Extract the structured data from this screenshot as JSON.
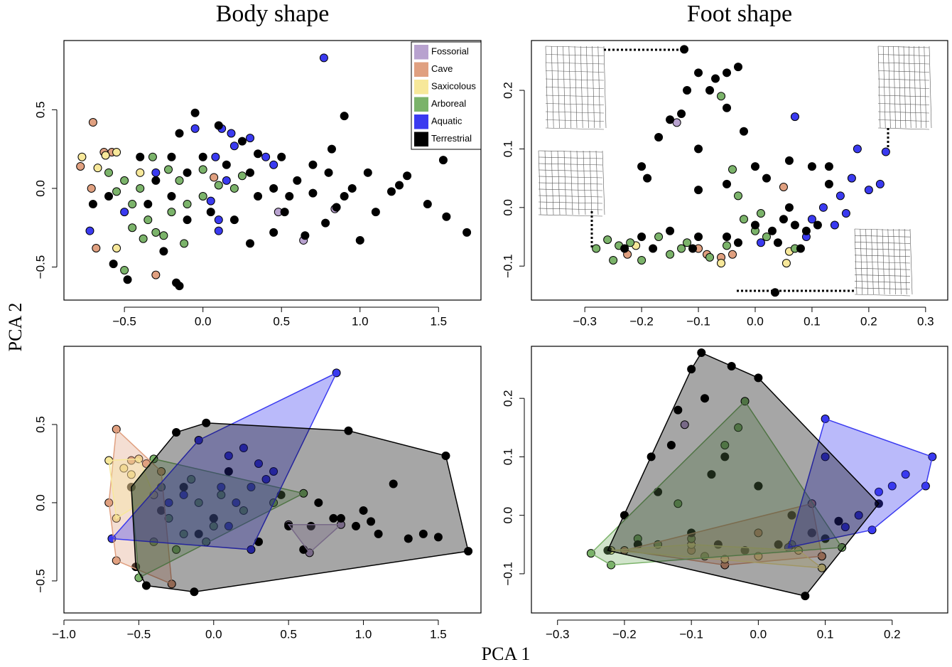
{
  "xlabel": "PCA 1",
  "ylabel": "PCA 2",
  "chart_data": [
    {
      "type": "scatter",
      "title": "Body shape",
      "legend": "top-right",
      "hull": false,
      "xlim": [
        -0.885,
        1.77
      ],
      "ylim": [
        -0.71,
        0.94
      ],
      "xticks": [
        {
          "value": -0.5,
          "label": "−0.5"
        },
        {
          "value": 0,
          "label": "0.0"
        },
        0.5,
        {
          "value": 1.0,
          "label": "1.0"
        },
        1.5
      ],
      "yticks": [
        {
          "value": -0.5,
          "label": "−0.5"
        },
        {
          "value": 0,
          "label": "0.0"
        },
        0.5
      ],
      "series": [
        {
          "name": "Fossorial",
          "color": "#b8a2cf",
          "x": [
            0.48,
            0.84,
            0.64
          ],
          "values": [
            -0.15,
            -0.13,
            -0.33
          ]
        },
        {
          "name": "Cave",
          "color": "#e0a080",
          "x": [
            -0.7,
            -0.78,
            -0.71,
            -0.68,
            -0.58,
            -0.63,
            -0.3,
            0.07
          ],
          "values": [
            0.42,
            0.14,
            0.0,
            -0.38,
            0.23,
            0.23,
            -0.55,
            0.07
          ]
        },
        {
          "name": "Saxicolous",
          "color": "#f7e89a",
          "x": [
            -0.77,
            -0.67,
            -0.62,
            -0.55,
            -0.55,
            -0.4
          ],
          "values": [
            0.2,
            0.13,
            0.21,
            0.23,
            -0.38,
            0.1
          ]
        },
        {
          "name": "Arboreal",
          "color": "#7bb36a",
          "x": [
            -0.6,
            -0.5,
            -0.45,
            -0.4,
            -0.35,
            -0.3,
            -0.25,
            -0.2,
            -0.15,
            -0.1,
            0.0,
            0.1,
            0.2,
            -0.5,
            -0.45,
            -0.32,
            -0.22,
            -0.12,
            0.0,
            0.25,
            -0.55,
            -0.38
          ],
          "values": [
            0.1,
            0.05,
            -0.1,
            0.0,
            -0.2,
            -0.28,
            -0.3,
            -0.15,
            0.05,
            -0.1,
            -0.05,
            0.02,
            0.0,
            -0.52,
            -0.25,
            0.2,
            0.12,
            -0.35,
            0.12,
            0.08,
            -0.02,
            -0.32
          ]
        },
        {
          "name": "Aquatic",
          "color": "#3a3af0",
          "x": [
            0.77,
            -0.72,
            -0.05,
            0.08,
            0.18,
            0.3,
            0.4,
            0.1,
            0.1,
            -0.5,
            -0.3,
            0.15,
            0.05,
            0.45,
            0.12,
            0.2
          ],
          "values": [
            0.83,
            -0.27,
            0.38,
            0.2,
            0.35,
            0.32,
            0.2,
            -0.2,
            -0.27,
            -0.15,
            0.1,
            0.05,
            -0.08,
            0.15,
            0.38,
            0.27
          ]
        },
        {
          "name": "Terrestrial",
          "color": "#000000",
          "x": [
            -0.05,
            -0.15,
            0.1,
            0.25,
            0.35,
            0.5,
            0.7,
            0.9,
            0.82,
            0.8,
            1.05,
            1.3,
            1.53,
            1.2,
            1.43,
            1.55,
            1.68,
            1.1,
            1.0,
            0.9,
            0.85,
            0.78,
            0.65,
            0.52,
            0.45,
            0.3,
            0.2,
            0.35,
            0.45,
            0.55,
            0.3,
            0.15,
            0.0,
            -0.1,
            -0.2,
            -0.3,
            -0.4,
            -0.2,
            -0.1,
            0.05,
            -0.25,
            -0.17,
            -0.15,
            -0.48,
            -0.57,
            -0.7,
            -0.35,
            -0.6,
            0.6,
            0.7,
            0.95,
            1.25
          ],
          "values": [
            0.48,
            0.35,
            0.4,
            0.3,
            0.22,
            0.2,
            0.15,
            0.46,
            0.25,
            0.1,
            0.1,
            0.08,
            0.18,
            -0.02,
            -0.1,
            -0.18,
            -0.28,
            -0.15,
            -0.33,
            -0.05,
            -0.12,
            -0.22,
            -0.3,
            -0.15,
            -0.28,
            -0.35,
            -0.2,
            -0.05,
            0.0,
            -0.05,
            0.1,
            0.15,
            0.2,
            0.1,
            0.2,
            0.05,
            0.2,
            -0.05,
            -0.2,
            -0.15,
            -0.4,
            -0.6,
            -0.62,
            -0.58,
            -0.48,
            -0.1,
            -0.1,
            -0.05,
            0.05,
            -0.03,
            0.0,
            0.02
          ]
        }
      ]
    },
    {
      "type": "scatter",
      "title": "Foot shape",
      "hull": false,
      "xlim": [
        -0.394,
        0.339
      ],
      "ylim": [
        -0.158,
        0.285
      ],
      "xticks": [
        {
          "value": -0.3,
          "label": "−0.3"
        },
        {
          "value": -0.2,
          "label": "−0.2"
        },
        {
          "value": -0.1,
          "label": "−0.1"
        },
        {
          "value": 0,
          "label": "0.0"
        },
        0.1,
        0.2,
        0.3
      ],
      "yticks": [
        {
          "value": -0.1,
          "label": "−0.1"
        },
        {
          "value": 0,
          "label": "0.0"
        },
        0.1,
        0.2
      ],
      "series": [
        {
          "name": "Fossorial",
          "color": "#b8a2cf",
          "x": [
            -0.138
          ],
          "values": [
            0.145
          ]
        },
        {
          "name": "Cave",
          "color": "#e0a080",
          "x": [
            -0.225,
            -0.085,
            -0.06,
            -0.04,
            0.05,
            -0.1
          ],
          "values": [
            -0.08,
            -0.08,
            -0.085,
            -0.08,
            0.035,
            -0.07
          ]
        },
        {
          "name": "Saxicolous",
          "color": "#f7e89a",
          "x": [
            -0.21,
            -0.06,
            0.055,
            0.06
          ],
          "values": [
            -0.065,
            -0.095,
            -0.095,
            -0.075
          ]
        },
        {
          "name": "Arboreal",
          "color": "#7bb36a",
          "x": [
            -0.28,
            -0.26,
            -0.24,
            -0.22,
            -0.2,
            -0.15,
            -0.17,
            -0.12,
            -0.08,
            -0.05,
            -0.02,
            0.0,
            -0.03,
            -0.04,
            -0.06,
            0.02,
            0.07,
            -0.25,
            -0.13,
            0.01
          ],
          "values": [
            -0.07,
            -0.055,
            -0.065,
            -0.06,
            -0.09,
            -0.08,
            -0.05,
            -0.06,
            -0.085,
            -0.065,
            -0.02,
            -0.04,
            0.02,
            0.065,
            0.19,
            -0.05,
            -0.07,
            -0.09,
            -0.07,
            -0.01
          ]
        },
        {
          "name": "Aquatic",
          "color": "#3a3af0",
          "x": [
            0.07,
            0.23,
            0.18,
            0.22,
            0.2,
            0.17,
            0.15,
            0.16,
            0.14,
            0.12,
            0.1,
            0.01,
            0.09
          ],
          "values": [
            0.155,
            0.095,
            0.1,
            0.04,
            0.03,
            0.05,
            0.02,
            -0.01,
            -0.03,
            0.0,
            -0.02,
            -0.06,
            -0.05
          ]
        },
        {
          "name": "Terrestrial",
          "color": "#000000",
          "x": [
            0.035,
            -0.125,
            -0.12,
            -0.1,
            -0.08,
            -0.07,
            -0.05,
            -0.03,
            -0.13,
            -0.15,
            -0.17,
            -0.2,
            -0.19,
            -0.1,
            -0.05,
            -0.02,
            0.0,
            0.02,
            0.06,
            0.1,
            0.13,
            0.13,
            -0.1,
            -0.05,
            -0.15,
            -0.1,
            -0.05,
            0.0,
            0.03,
            0.05,
            0.07,
            0.09,
            0.11,
            0.04,
            -0.2,
            -0.23,
            -0.18,
            -0.11,
            0.08,
            0.06,
            -0.03
          ],
          "values": [
            -0.145,
            0.27,
            0.2,
            0.23,
            0.2,
            0.22,
            0.23,
            0.24,
            0.16,
            0.15,
            0.12,
            0.07,
            0.05,
            0.1,
            0.17,
            0.13,
            0.07,
            0.05,
            0.08,
            0.07,
            0.07,
            0.04,
            0.03,
            0.04,
            -0.04,
            -0.05,
            -0.05,
            -0.03,
            -0.04,
            -0.02,
            -0.03,
            -0.04,
            -0.03,
            -0.06,
            -0.05,
            -0.07,
            -0.07,
            -0.07,
            -0.07,
            0.0,
            -0.06
          ]
        }
      ]
    },
    {
      "type": "scatter",
      "hull": true,
      "xlim": [
        -1.0,
        1.785
      ],
      "ylim": [
        -0.705,
        1.0
      ],
      "xticks": [
        {
          "value": -1.0,
          "label": "−1.0"
        },
        {
          "value": -0.5,
          "label": "−0.5"
        },
        {
          "value": 0,
          "label": "0.0"
        },
        0.5,
        {
          "value": 1.0,
          "label": "1.0"
        },
        1.5
      ],
      "yticks": [
        {
          "value": -0.5,
          "label": "−0.5"
        },
        {
          "value": 0,
          "label": "0.0"
        },
        0.5
      ],
      "series": [
        {
          "name": "Fossorial",
          "color": "#b8a2cf",
          "x": [
            0.5,
            0.85,
            0.64
          ],
          "values": [
            -0.14,
            -0.14,
            -0.32
          ]
        },
        {
          "name": "Cave",
          "color": "#e0a080",
          "x": [
            -0.65,
            -0.7,
            -0.65,
            -0.28,
            -0.55,
            -0.45,
            -0.35
          ],
          "values": [
            0.47,
            0.0,
            -0.37,
            -0.52,
            0.27,
            0.25,
            0.2
          ]
        },
        {
          "name": "Saxicolous",
          "color": "#f7e89a",
          "x": [
            -0.7,
            -0.5,
            -0.4,
            -0.65,
            -0.6,
            -0.55
          ],
          "values": [
            0.27,
            0.28,
            0.05,
            -0.1,
            0.22,
            0.18
          ]
        },
        {
          "name": "Arboreal",
          "color": "#7bb36a",
          "x": [
            -0.5,
            0.6,
            -0.4,
            -0.55,
            0.05,
            -0.3,
            -0.2,
            -0.1,
            0.2,
            -0.4,
            -0.25,
            0.0,
            -0.15,
            0.4,
            -0.35,
            -0.05
          ],
          "values": [
            -0.48,
            0.06,
            0.28,
            0.1,
            0.05,
            -0.1,
            -0.2,
            0.0,
            -0.05,
            -0.25,
            -0.3,
            -0.15,
            0.15,
            0.0,
            0.1,
            -0.25
          ]
        },
        {
          "name": "Aquatic",
          "color": "#3a3af0",
          "x": [
            0.82,
            -0.68,
            0.25,
            0.05,
            -0.1,
            0.1,
            0.2,
            0.3,
            0.4,
            -0.3,
            0.0,
            0.15,
            0.25,
            -0.2,
            0.35,
            0.1
          ],
          "values": [
            0.83,
            -0.23,
            -0.3,
            0.1,
            0.4,
            0.3,
            0.35,
            0.25,
            0.2,
            0.0,
            -0.1,
            0.0,
            0.1,
            0.05,
            0.15,
            -0.15
          ]
        },
        {
          "name": "Terrestrial",
          "color": "#000000",
          "x": [
            -0.05,
            0.9,
            1.55,
            1.7,
            -0.13,
            -0.45,
            -0.52,
            -0.55,
            -0.25,
            0.5,
            0.7,
            1.0,
            1.2,
            1.4,
            1.5,
            0.6,
            0.8,
            0.95,
            1.05,
            0.3,
            0.1,
            -0.2,
            -0.35,
            0.45,
            0.65,
            0.85,
            1.1,
            1.3,
            0.0,
            -0.1
          ],
          "values": [
            0.51,
            0.46,
            0.3,
            -0.31,
            -0.57,
            -0.53,
            -0.41,
            0.1,
            0.45,
            -0.15,
            0.0,
            -0.05,
            0.12,
            -0.2,
            -0.22,
            -0.3,
            -0.1,
            -0.15,
            -0.12,
            -0.25,
            0.2,
            0.1,
            -0.05,
            0.05,
            -0.15,
            -0.1,
            -0.2,
            -0.23,
            -0.1,
            -0.2
          ]
        }
      ]
    },
    {
      "type": "scatter",
      "hull": true,
      "xlim": [
        -0.339,
        0.283
      ],
      "ylim": [
        -0.167,
        0.289
      ],
      "xticks": [
        {
          "value": -0.3,
          "label": "−0.3"
        },
        {
          "value": -0.2,
          "label": "−0.2"
        },
        {
          "value": -0.1,
          "label": "−0.1"
        },
        {
          "value": 0,
          "label": "0.0"
        },
        0.1,
        0.2
      ],
      "yticks": [
        {
          "value": -0.1,
          "label": "−0.1"
        },
        {
          "value": 0,
          "label": "0.0"
        },
        0.1,
        0.2
      ],
      "series": [
        {
          "name": "Fossorial",
          "color": "#b8a2cf",
          "x": [
            -0.11
          ],
          "values": [
            0.155
          ]
        },
        {
          "name": "Cave",
          "color": "#e0a080",
          "x": [
            0.08,
            -0.2,
            -0.05,
            0.095,
            0.0,
            -0.1,
            0.05
          ],
          "values": [
            0.02,
            -0.06,
            -0.085,
            -0.07,
            -0.03,
            -0.06,
            -0.05
          ]
        },
        {
          "name": "Saxicolous",
          "color": "#f7e89a",
          "x": [
            -0.22,
            0.095,
            0.06,
            -0.1,
            -0.05,
            0.0
          ],
          "values": [
            -0.06,
            -0.09,
            -0.06,
            -0.05,
            -0.075,
            -0.07
          ]
        },
        {
          "name": "Arboreal",
          "color": "#7bb36a",
          "x": [
            -0.02,
            -0.25,
            -0.22,
            0.125,
            0.08,
            -0.05,
            -0.1,
            -0.15,
            0.0,
            -0.03,
            -0.08,
            0.05,
            -0.18,
            -0.12,
            0.1
          ],
          "values": [
            0.195,
            -0.065,
            -0.085,
            -0.055,
            -0.03,
            0.12,
            -0.04,
            -0.05,
            0.05,
            0.15,
            -0.07,
            -0.05,
            -0.04,
            0.02,
            -0.04
          ]
        },
        {
          "name": "Aquatic",
          "color": "#3a3af0",
          "x": [
            0.1,
            0.26,
            0.25,
            0.17,
            0.045,
            0.1,
            0.2,
            0.18,
            0.15,
            0.12,
            0.08,
            0.13,
            0.22
          ],
          "values": [
            0.165,
            0.1,
            0.05,
            -0.025,
            -0.055,
            0.1,
            0.05,
            0.04,
            0.0,
            -0.01,
            -0.03,
            -0.02,
            0.07
          ]
        },
        {
          "name": "Terrestrial",
          "color": "#000000",
          "x": [
            -0.085,
            -0.04,
            0.0,
            0.18,
            0.07,
            -0.225,
            -0.2,
            -0.16,
            -0.1,
            -0.08,
            -0.12,
            -0.05,
            0.0,
            -0.15,
            -0.06,
            0.03,
            0.08,
            -0.18,
            -0.1,
            0.05,
            0.12,
            -0.02,
            -0.13,
            -0.07,
            0.1
          ],
          "values": [
            0.278,
            0.255,
            0.235,
            0.02,
            -0.138,
            -0.06,
            0.0,
            0.1,
            0.25,
            0.2,
            0.18,
            0.1,
            0.05,
            0.04,
            -0.05,
            -0.05,
            -0.03,
            -0.05,
            -0.03,
            0.0,
            -0.01,
            -0.06,
            0.12,
            0.07,
            -0.04
          ]
        }
      ]
    }
  ]
}
